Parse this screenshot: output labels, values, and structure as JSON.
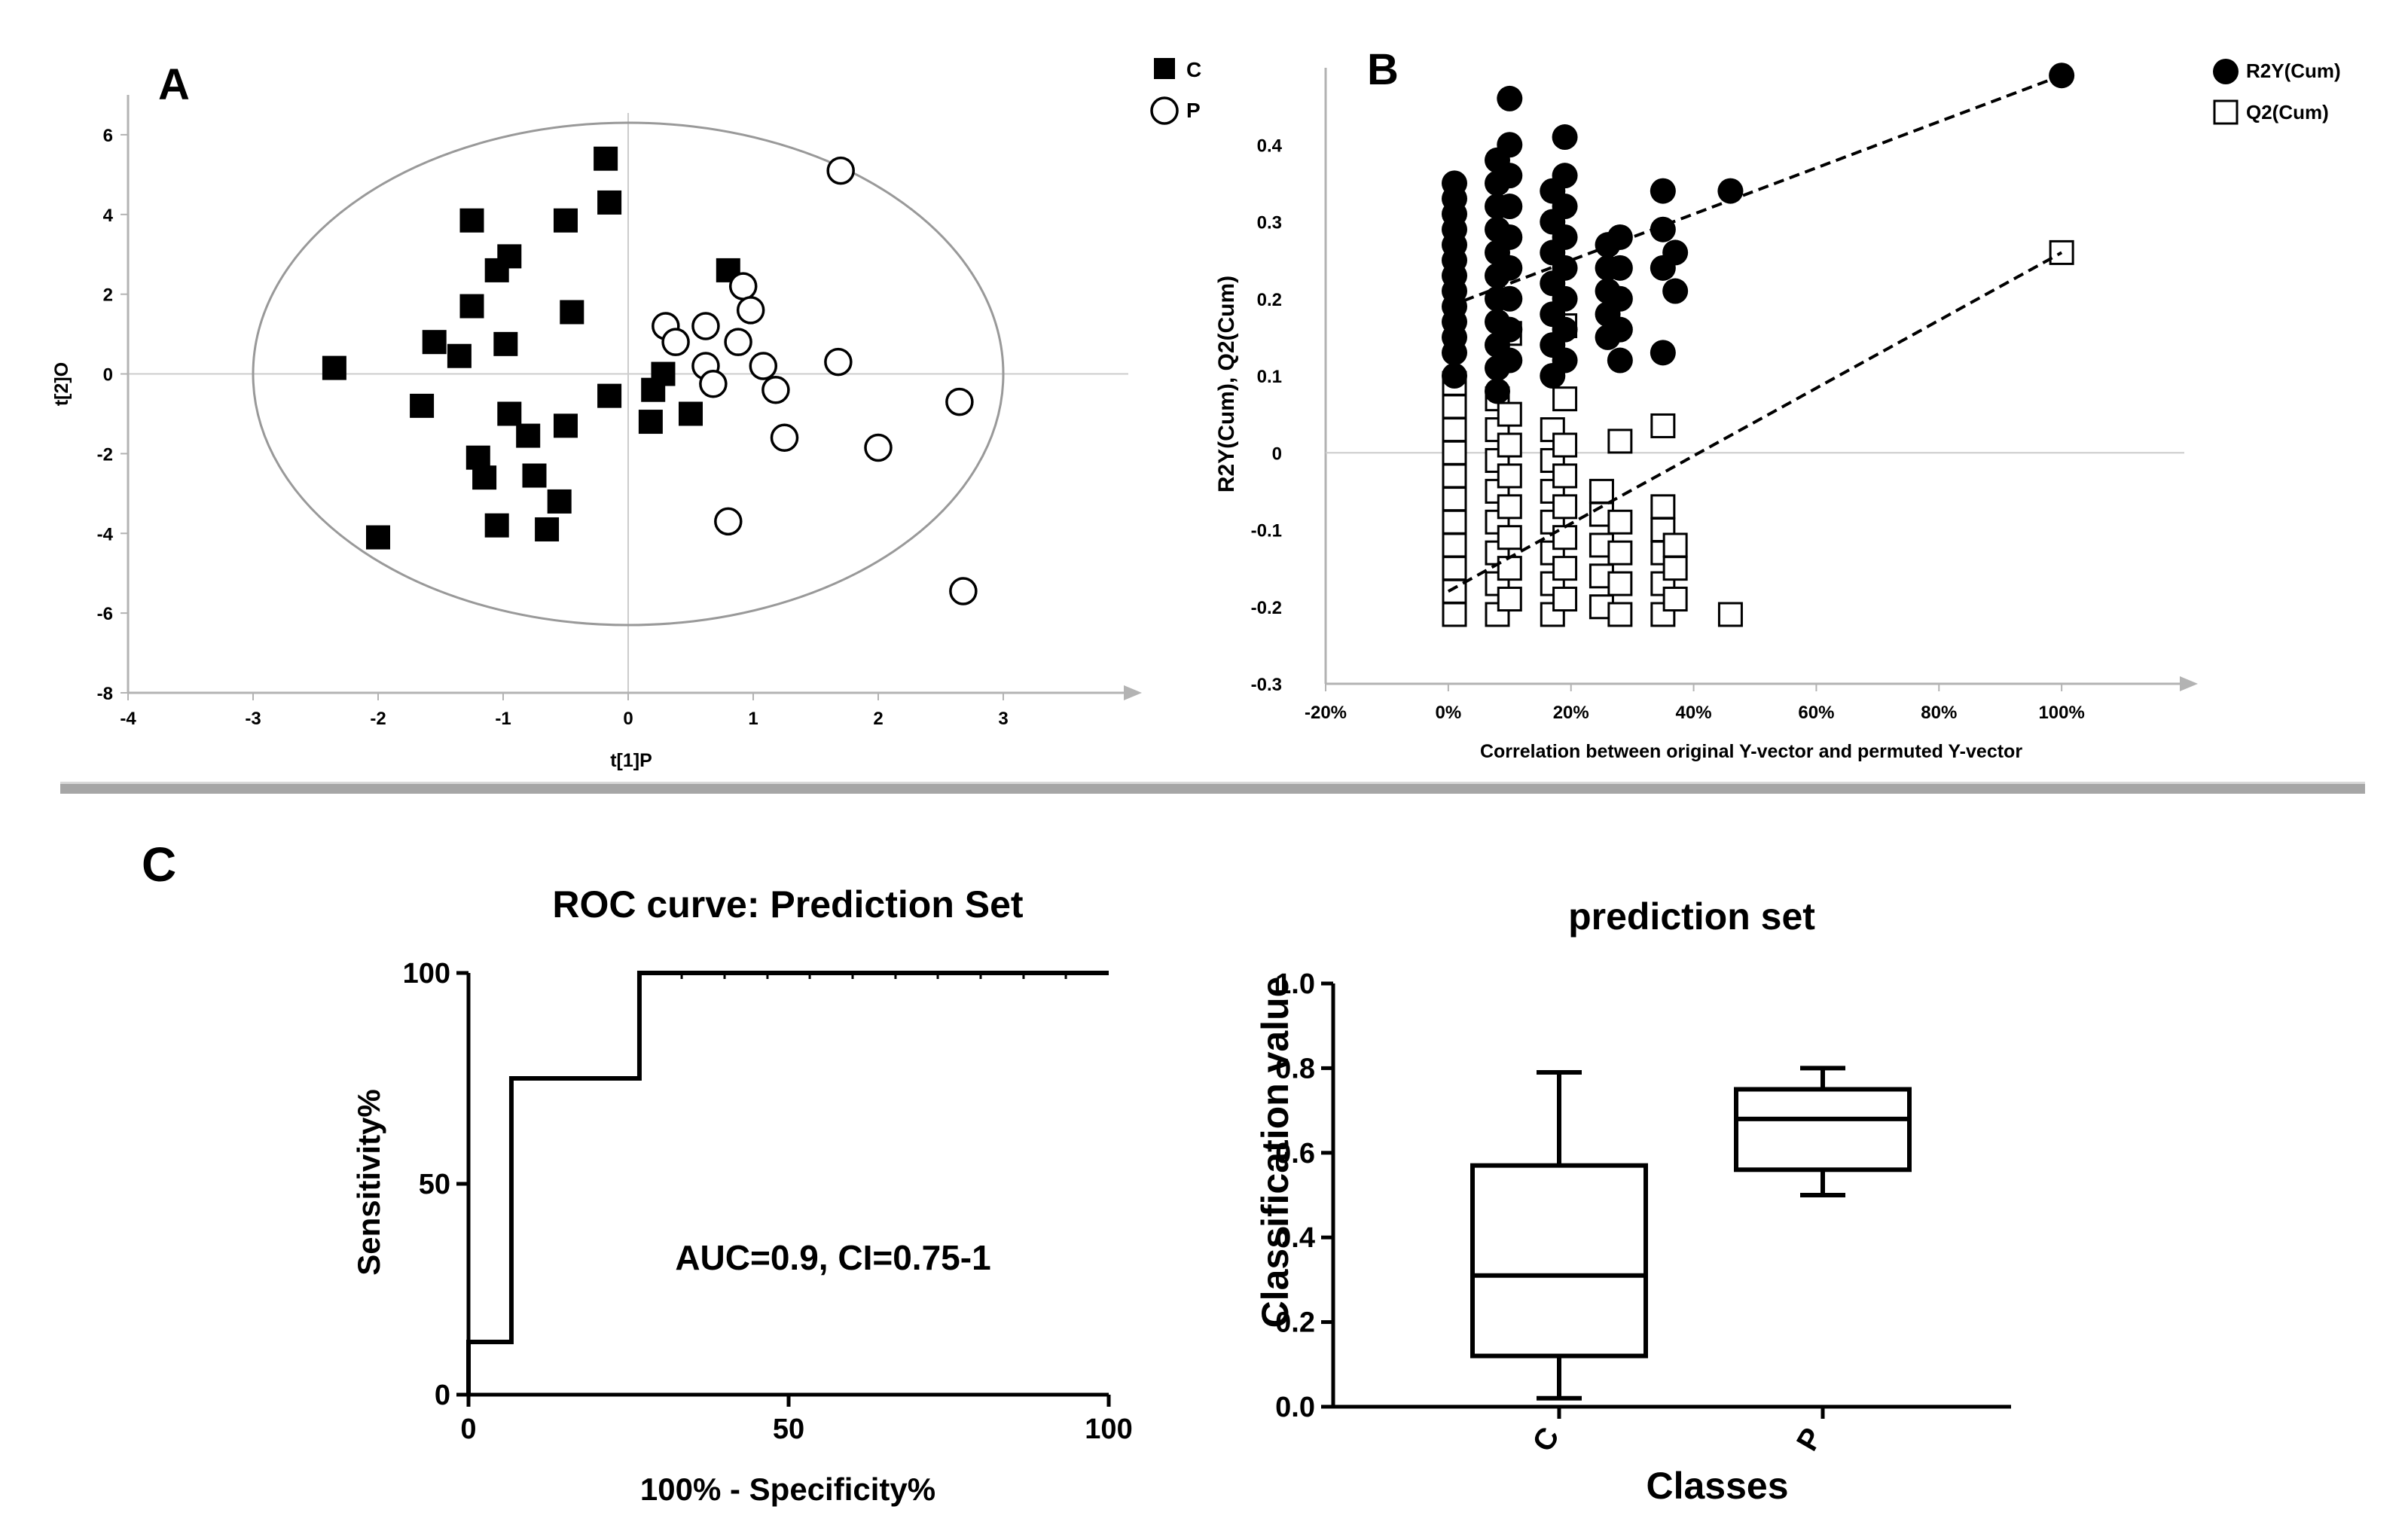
{
  "panel_labels": {
    "a": "A",
    "b": "B",
    "c": "C"
  },
  "colors": {
    "ink": "#000000",
    "axis_grey": "#b3b3b3",
    "ellipse_grey": "#999999",
    "divider": "#a6a6a6"
  },
  "chart_data": [
    {
      "id": "A",
      "type": "scatter",
      "xlabel": "t[1]P",
      "ylabel": "t[2]O",
      "xlim": [
        -4,
        4
      ],
      "ylim": [
        -8,
        7
      ],
      "xticks": [
        "-4",
        "-3",
        "-2",
        "-1",
        "0",
        "1",
        "2",
        "3"
      ],
      "yticks": [
        "-8",
        "-6",
        "-4",
        "-2",
        "0",
        "2",
        "4",
        "6"
      ],
      "hotelling_ellipse": {
        "center": [
          0,
          0
        ],
        "rx": 3.0,
        "ry": 6.3
      },
      "legend": [
        {
          "name": "C",
          "marker": "filled-square"
        },
        {
          "name": "P",
          "marker": "open-circle"
        }
      ],
      "legend_position": "top-right",
      "series": [
        {
          "name": "C",
          "marker": "filled-square",
          "points": [
            [
              -2.35,
              0.15
            ],
            [
              -2.0,
              -4.1
            ],
            [
              -1.65,
              -0.8
            ],
            [
              -1.55,
              0.8
            ],
            [
              -1.35,
              0.45
            ],
            [
              -1.25,
              3.85
            ],
            [
              -1.25,
              1.7
            ],
            [
              -1.2,
              -2.1
            ],
            [
              -1.15,
              -2.6
            ],
            [
              -1.05,
              2.6
            ],
            [
              -1.05,
              -3.8
            ],
            [
              -0.95,
              2.95
            ],
            [
              -0.98,
              0.75
            ],
            [
              -0.95,
              -1.0
            ],
            [
              -0.8,
              -1.55
            ],
            [
              -0.75,
              -2.55
            ],
            [
              -0.65,
              -3.9
            ],
            [
              -0.55,
              -3.2
            ],
            [
              -0.5,
              3.85
            ],
            [
              -0.5,
              -1.3
            ],
            [
              -0.45,
              1.55
            ],
            [
              -0.18,
              5.4
            ],
            [
              -0.15,
              4.3
            ],
            [
              -0.15,
              -0.55
            ],
            [
              0.18,
              -1.2
            ],
            [
              0.2,
              -0.4
            ],
            [
              0.28,
              0.0
            ],
            [
              0.5,
              -1.0
            ],
            [
              0.8,
              2.6
            ]
          ]
        },
        {
          "name": "P",
          "marker": "open-circle",
          "points": [
            [
              0.3,
              1.2
            ],
            [
              0.38,
              0.8
            ],
            [
              0.62,
              1.2
            ],
            [
              0.62,
              0.2
            ],
            [
              0.68,
              -0.25
            ],
            [
              0.8,
              -3.7
            ],
            [
              0.88,
              0.8
            ],
            [
              0.92,
              2.2
            ],
            [
              0.98,
              1.6
            ],
            [
              1.08,
              0.2
            ],
            [
              1.18,
              -0.4
            ],
            [
              1.25,
              -1.6
            ],
            [
              1.7,
              5.1
            ],
            [
              1.68,
              0.3
            ],
            [
              2.0,
              -1.85
            ],
            [
              2.65,
              -0.7
            ],
            [
              2.68,
              -5.45
            ]
          ]
        }
      ]
    },
    {
      "id": "B",
      "type": "scatter",
      "xlabel": "Correlation between original Y-vector and permuted Y-vector",
      "ylabel": "R2Y(Cum), Q2(Cum)",
      "xlim": [
        -0.2,
        1.2
      ],
      "ylim": [
        -0.3,
        0.5
      ],
      "xticks": [
        "-20%",
        "0%",
        "20%",
        "40%",
        "60%",
        "80%",
        "100%"
      ],
      "yticks": [
        "-0.3",
        "-0.2",
        "-0.1",
        "0",
        "0.1",
        "0.2",
        "0.3",
        "0.4"
      ],
      "legend": [
        {
          "name": "R2Y(Cum)",
          "marker": "filled-circle"
        },
        {
          "name": "Q2(Cum)",
          "marker": "open-square"
        }
      ],
      "legend_position": "top-right",
      "original_model": {
        "r2y": [
          1.0,
          0.49
        ],
        "q2": [
          1.0,
          0.26
        ]
      },
      "regression_lines": {
        "r2y": {
          "intercept": 0.19,
          "end": [
            1.0,
            0.49
          ]
        },
        "q2": {
          "intercept": -0.18,
          "end": [
            1.0,
            0.26
          ]
        }
      },
      "series": [
        {
          "name": "R2Y(Cum)",
          "marker": "filled-circle",
          "points": [
            [
              0.01,
              0.1
            ],
            [
              0.01,
              0.13
            ],
            [
              0.01,
              0.15
            ],
            [
              0.01,
              0.17
            ],
            [
              0.01,
              0.19
            ],
            [
              0.01,
              0.21
            ],
            [
              0.01,
              0.23
            ],
            [
              0.01,
              0.25
            ],
            [
              0.01,
              0.27
            ],
            [
              0.01,
              0.29
            ],
            [
              0.01,
              0.31
            ],
            [
              0.01,
              0.33
            ],
            [
              0.01,
              0.35
            ],
            [
              0.08,
              0.08
            ],
            [
              0.08,
              0.11
            ],
            [
              0.08,
              0.14
            ],
            [
              0.08,
              0.17
            ],
            [
              0.08,
              0.2
            ],
            [
              0.08,
              0.23
            ],
            [
              0.08,
              0.26
            ],
            [
              0.08,
              0.29
            ],
            [
              0.08,
              0.32
            ],
            [
              0.08,
              0.35
            ],
            [
              0.08,
              0.38
            ],
            [
              0.1,
              0.12
            ],
            [
              0.1,
              0.16
            ],
            [
              0.1,
              0.2
            ],
            [
              0.1,
              0.24
            ],
            [
              0.1,
              0.28
            ],
            [
              0.1,
              0.32
            ],
            [
              0.1,
              0.36
            ],
            [
              0.1,
              0.4
            ],
            [
              0.1,
              0.46
            ],
            [
              0.17,
              0.1
            ],
            [
              0.17,
              0.14
            ],
            [
              0.17,
              0.18
            ],
            [
              0.17,
              0.22
            ],
            [
              0.17,
              0.26
            ],
            [
              0.17,
              0.3
            ],
            [
              0.17,
              0.34
            ],
            [
              0.19,
              0.12
            ],
            [
              0.19,
              0.16
            ],
            [
              0.19,
              0.2
            ],
            [
              0.19,
              0.24
            ],
            [
              0.19,
              0.28
            ],
            [
              0.19,
              0.32
            ],
            [
              0.19,
              0.36
            ],
            [
              0.19,
              0.41
            ],
            [
              0.26,
              0.15
            ],
            [
              0.26,
              0.18
            ],
            [
              0.26,
              0.21
            ],
            [
              0.26,
              0.24
            ],
            [
              0.26,
              0.27
            ],
            [
              0.28,
              0.12
            ],
            [
              0.28,
              0.16
            ],
            [
              0.28,
              0.2
            ],
            [
              0.28,
              0.24
            ],
            [
              0.28,
              0.28
            ],
            [
              0.35,
              0.13
            ],
            [
              0.35,
              0.24
            ],
            [
              0.35,
              0.29
            ],
            [
              0.35,
              0.34
            ],
            [
              0.37,
              0.21
            ],
            [
              0.37,
              0.26
            ],
            [
              0.46,
              0.34
            ],
            [
              1.0,
              0.49
            ]
          ]
        },
        {
          "name": "Q2(Cum)",
          "marker": "open-square",
          "points": [
            [
              0.01,
              -0.21
            ],
            [
              0.01,
              -0.18
            ],
            [
              0.01,
              -0.15
            ],
            [
              0.01,
              -0.12
            ],
            [
              0.01,
              -0.09
            ],
            [
              0.01,
              -0.06
            ],
            [
              0.01,
              -0.03
            ],
            [
              0.01,
              0.0
            ],
            [
              0.01,
              0.03
            ],
            [
              0.01,
              0.06
            ],
            [
              0.01,
              0.09
            ],
            [
              0.08,
              -0.21
            ],
            [
              0.08,
              -0.17
            ],
            [
              0.08,
              -0.13
            ],
            [
              0.08,
              -0.09
            ],
            [
              0.08,
              -0.05
            ],
            [
              0.08,
              -0.01
            ],
            [
              0.08,
              0.03
            ],
            [
              0.08,
              0.07
            ],
            [
              0.1,
              -0.19
            ],
            [
              0.1,
              -0.15
            ],
            [
              0.1,
              -0.11
            ],
            [
              0.1,
              -0.07
            ],
            [
              0.1,
              -0.03
            ],
            [
              0.1,
              0.01
            ],
            [
              0.1,
              0.05
            ],
            [
              0.1,
              0.155
            ],
            [
              0.17,
              -0.21
            ],
            [
              0.17,
              -0.17
            ],
            [
              0.17,
              -0.13
            ],
            [
              0.17,
              -0.09
            ],
            [
              0.17,
              -0.05
            ],
            [
              0.17,
              -0.01
            ],
            [
              0.17,
              0.03
            ],
            [
              0.19,
              -0.19
            ],
            [
              0.19,
              -0.15
            ],
            [
              0.19,
              -0.11
            ],
            [
              0.19,
              -0.07
            ],
            [
              0.19,
              -0.03
            ],
            [
              0.19,
              0.01
            ],
            [
              0.19,
              0.07
            ],
            [
              0.19,
              0.165
            ],
            [
              0.25,
              -0.2
            ],
            [
              0.25,
              -0.16
            ],
            [
              0.25,
              -0.12
            ],
            [
              0.25,
              -0.08
            ],
            [
              0.25,
              -0.05
            ],
            [
              0.28,
              -0.21
            ],
            [
              0.28,
              -0.17
            ],
            [
              0.28,
              -0.13
            ],
            [
              0.28,
              -0.09
            ],
            [
              0.28,
              0.015
            ],
            [
              0.35,
              -0.21
            ],
            [
              0.35,
              -0.17
            ],
            [
              0.35,
              -0.13
            ],
            [
              0.35,
              -0.1
            ],
            [
              0.35,
              -0.07
            ],
            [
              0.35,
              0.035
            ],
            [
              0.37,
              -0.19
            ],
            [
              0.37,
              -0.15
            ],
            [
              0.37,
              -0.12
            ],
            [
              0.46,
              -0.21
            ],
            [
              1.0,
              0.26
            ]
          ]
        }
      ]
    },
    {
      "id": "C-roc",
      "type": "line",
      "title": "ROC curve: Prediction Set",
      "xlabel": "100% - Specificity%",
      "ylabel": "Sensitivity%",
      "xlim": [
        0,
        100
      ],
      "ylim": [
        0,
        100
      ],
      "xticks": [
        "0",
        "50",
        "100"
      ],
      "yticks": [
        "0",
        "50",
        "100"
      ],
      "annotation": "AUC=0.9, CI=0.75-1",
      "x": [
        0,
        0,
        6.7,
        6.7,
        26.7,
        26.7,
        100
      ],
      "y": [
        0,
        12.5,
        12.5,
        75,
        75,
        100,
        100
      ],
      "tick_marks_x": [
        33.3,
        40,
        46.7,
        53.3,
        60,
        66.7,
        73.3,
        80,
        86.7,
        93.3
      ]
    },
    {
      "id": "C-box",
      "type": "box",
      "title": "prediction set",
      "xlabel": "Classes",
      "ylabel": "Classification value",
      "ylim": [
        0,
        1.0
      ],
      "yticks": [
        "0.0",
        "0.2",
        "0.4",
        "0.6",
        "0.8",
        "1.0"
      ],
      "categories": [
        "C",
        "P"
      ],
      "boxes": [
        {
          "name": "C",
          "min": 0.02,
          "q1": 0.12,
          "median": 0.31,
          "q3": 0.57,
          "max": 0.79
        },
        {
          "name": "P",
          "min": 0.5,
          "q1": 0.56,
          "median": 0.68,
          "q3": 0.75,
          "max": 0.8
        }
      ]
    }
  ]
}
